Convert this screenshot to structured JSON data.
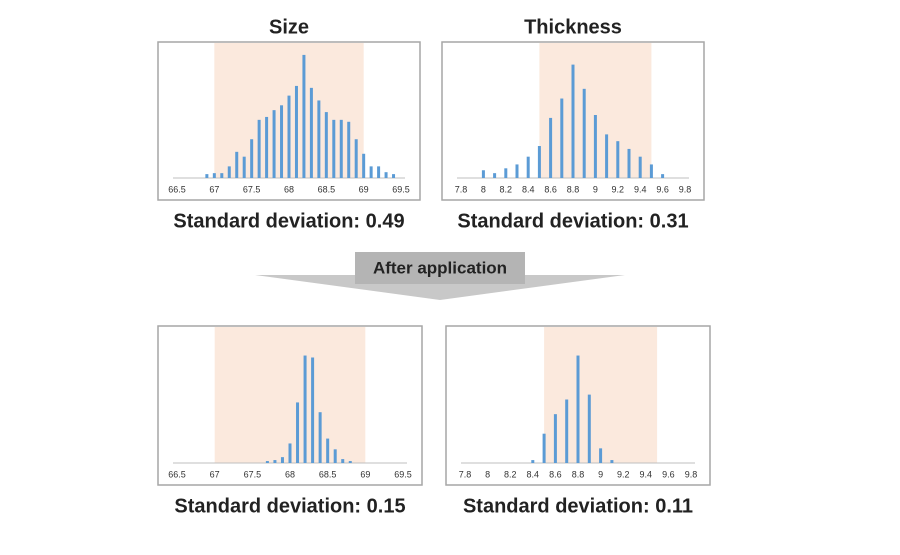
{
  "chart_data": [
    {
      "type": "bar",
      "title": "Size",
      "subtitle": "Standard deviation: 0.49",
      "color": "#5b9bd5",
      "highlight": [
        67,
        69
      ],
      "x": [
        66.9,
        67.0,
        67.1,
        67.2,
        67.3,
        67.4,
        67.5,
        67.6,
        67.7,
        67.8,
        67.9,
        68.0,
        68.1,
        68.2,
        68.3,
        68.4,
        68.5,
        68.6,
        68.7,
        68.8,
        68.9,
        69.0,
        69.1,
        69.2,
        69.3,
        69.4
      ],
      "values": [
        4,
        5,
        5,
        12,
        27,
        22,
        40,
        60,
        63,
        70,
        75,
        85,
        95,
        127,
        93,
        80,
        68,
        60,
        60,
        58,
        40,
        25,
        12,
        12,
        6,
        4
      ],
      "xlim": [
        66.5,
        69.5
      ],
      "xticks": [
        66.5,
        67,
        67.5,
        68,
        68.5,
        69,
        69.5
      ],
      "ylim": [
        0,
        130
      ]
    },
    {
      "type": "bar",
      "title": "Thickness",
      "subtitle": "Standard deviation: 0.31",
      "color": "#5b9bd5",
      "highlight": [
        8.5,
        9.5
      ],
      "x": [
        8.0,
        8.1,
        8.2,
        8.3,
        8.4,
        8.5,
        8.6,
        8.7,
        8.8,
        8.9,
        9.0,
        9.1,
        9.2,
        9.3,
        9.4,
        9.5,
        9.6
      ],
      "values": [
        8,
        5,
        10,
        14,
        22,
        33,
        62,
        82,
        117,
        92,
        65,
        45,
        38,
        30,
        22,
        14,
        4
      ],
      "xlim": [
        7.8,
        9.8
      ],
      "xticks": [
        7.8,
        8,
        8.2,
        8.4,
        8.6,
        8.8,
        9,
        9.2,
        9.4,
        9.6,
        9.8
      ],
      "ylim": [
        0,
        130
      ]
    },
    {
      "type": "bar",
      "subtitle": "Standard deviation: 0.15",
      "color": "#5b9bd5",
      "highlight": [
        67,
        69
      ],
      "x": [
        67.7,
        67.8,
        67.9,
        68.0,
        68.1,
        68.2,
        68.3,
        68.4,
        68.5,
        68.6,
        68.7,
        68.8
      ],
      "values": [
        2,
        3,
        6,
        20,
        62,
        110,
        108,
        52,
        25,
        14,
        4,
        2
      ],
      "xlim": [
        66.5,
        69.5
      ],
      "xticks": [
        66.5,
        67,
        67.5,
        68,
        68.5,
        69,
        69.5
      ],
      "ylim": [
        0,
        130
      ]
    },
    {
      "type": "bar",
      "subtitle": "Standard deviation: 0.11",
      "color": "#5b9bd5",
      "highlight": [
        8.5,
        9.5
      ],
      "x": [
        8.4,
        8.5,
        8.6,
        8.7,
        8.8,
        8.9,
        9.0,
        9.1
      ],
      "values": [
        3,
        30,
        50,
        65,
        110,
        70,
        15,
        3
      ],
      "xlim": [
        7.8,
        9.8
      ],
      "xticks": [
        7.8,
        8,
        8.2,
        8.4,
        8.6,
        8.8,
        9,
        9.2,
        9.4,
        9.6,
        9.8
      ],
      "ylim": [
        0,
        130
      ]
    }
  ],
  "banner": "After application"
}
